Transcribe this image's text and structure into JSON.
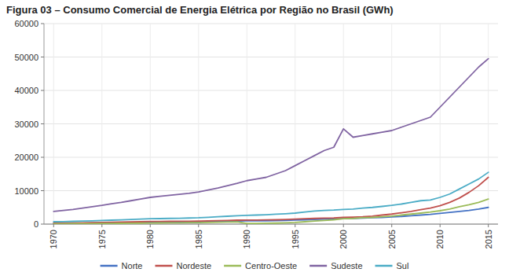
{
  "chart_data": {
    "type": "line",
    "title": "Figura 03 – Consumo Comercial de Energia Elétrica por Região no Brasil (GWh)",
    "x": [
      1970,
      1971,
      1972,
      1973,
      1974,
      1975,
      1976,
      1977,
      1978,
      1979,
      1980,
      1981,
      1982,
      1983,
      1984,
      1985,
      1986,
      1987,
      1988,
      1989,
      1990,
      1991,
      1992,
      1993,
      1994,
      1995,
      1996,
      1997,
      1998,
      1999,
      2000,
      2001,
      2002,
      2003,
      2004,
      2005,
      2006,
      2007,
      2008,
      2009,
      2010,
      2011,
      2012,
      2013,
      2014,
      2015
    ],
    "series": [
      {
        "name": "Norte",
        "color": "#4472C4",
        "values": [
          200,
          220,
          250,
          280,
          310,
          340,
          380,
          420,
          460,
          510,
          560,
          580,
          600,
          620,
          650,
          680,
          730,
          780,
          840,
          900,
          950,
          980,
          1000,
          1050,
          1100,
          1200,
          1300,
          1400,
          1500,
          1550,
          1650,
          1700,
          1800,
          1900,
          2000,
          2150,
          2300,
          2500,
          2700,
          2900,
          3200,
          3500,
          3800,
          4100,
          4500,
          5000
        ]
      },
      {
        "name": "Nordeste",
        "color": "#C0504D",
        "values": [
          300,
          330,
          360,
          400,
          440,
          490,
          540,
          590,
          650,
          710,
          780,
          800,
          820,
          840,
          870,
          910,
          970,
          1030,
          1100,
          1180,
          1200,
          1220,
          1250,
          1300,
          1400,
          1500,
          1600,
          1700,
          1800,
          1850,
          2000,
          2100,
          2200,
          2400,
          2700,
          3000,
          3400,
          3800,
          4300,
          4800,
          5500,
          6500,
          7800,
          9500,
          11500,
          14000
        ]
      },
      {
        "name": "Centro-Oeste",
        "color": "#9BBB59",
        "values": [
          100,
          110,
          125,
          140,
          160,
          180,
          200,
          230,
          260,
          290,
          330,
          350,
          370,
          390,
          420,
          450,
          500,
          560,
          620,
          680,
          200,
          220,
          250,
          300,
          400,
          500,
          700,
          900,
          1100,
          1300,
          1600,
          1700,
          1900,
          2000,
          2200,
          2400,
          2700,
          3000,
          3300,
          3600,
          4000,
          4500,
          5200,
          5800,
          6500,
          7500
        ]
      },
      {
        "name": "Sudeste",
        "color": "#8064A2",
        "values": [
          3800,
          4100,
          4400,
          4800,
          5200,
          5600,
          6100,
          6500,
          7000,
          7500,
          8000,
          8300,
          8600,
          8900,
          9200,
          9600,
          10200,
          10800,
          11500,
          12200,
          13000,
          13500,
          14000,
          15000,
          16000,
          17500,
          19000,
          20500,
          22000,
          23000,
          28500,
          26000,
          26500,
          27000,
          27500,
          28000,
          29000,
          30000,
          31000,
          32000,
          35000,
          38000,
          41000,
          44000,
          47000,
          49500
        ]
      },
      {
        "name": "Sul",
        "color": "#4BACC6",
        "values": [
          700,
          750,
          820,
          900,
          990,
          1080,
          1180,
          1280,
          1380,
          1490,
          1600,
          1650,
          1700,
          1750,
          1820,
          1900,
          2050,
          2200,
          2350,
          2500,
          2600,
          2700,
          2800,
          2950,
          3100,
          3300,
          3600,
          3900,
          4100,
          4200,
          4400,
          4500,
          4800,
          5000,
          5300,
          5600,
          6000,
          6500,
          7000,
          7200,
          8000,
          9000,
          10500,
          12000,
          13500,
          15500
        ]
      }
    ],
    "xlim": [
      1969,
      2016
    ],
    "xticks": [
      1970,
      1975,
      1980,
      1985,
      1990,
      1995,
      2000,
      2005,
      2010,
      2015
    ],
    "ylim": [
      0,
      60000
    ],
    "yticks": [
      0,
      10000,
      20000,
      30000,
      40000,
      50000,
      60000
    ],
    "grid": true,
    "legend": "bottom"
  }
}
